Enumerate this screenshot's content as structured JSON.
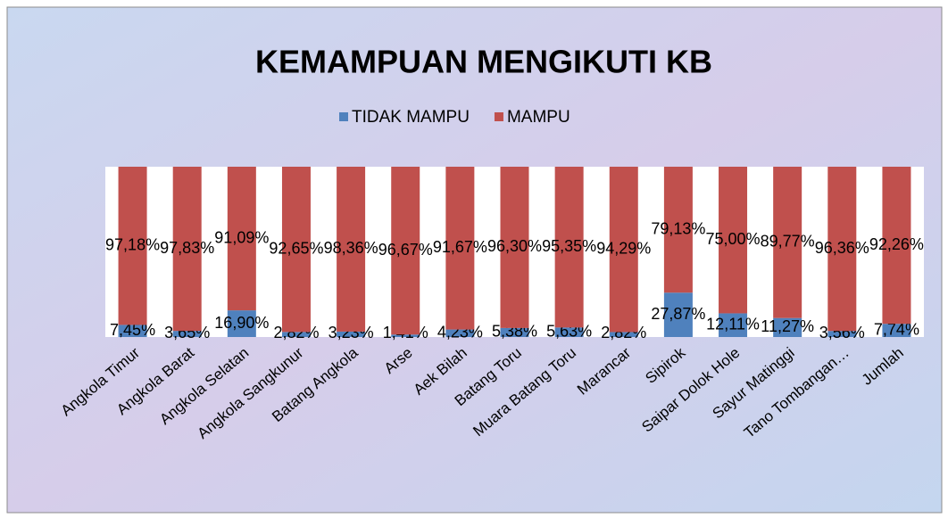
{
  "chart_data": {
    "type": "bar",
    "stacked": "percent",
    "title": "KEMAMPUAN MENGIKUTI KB",
    "categories": [
      "Angkola Timur",
      "Angkola Barat",
      "Angkola Selatan",
      "Angkola Sangkunur",
      "Batang Angkola",
      "Arse",
      "Aek Bilah",
      "Batang Toru",
      "Muara Batang Toru",
      "Marancar",
      "Sipirok",
      "Saipar Dolok Hole",
      "Sayur Matinggi",
      "Tano Tombangan…",
      "Jumlah"
    ],
    "series": [
      {
        "name": "TIDAK MAMPU",
        "color": "#4f81bd",
        "values": [
          7.45,
          3.65,
          16.9,
          2.82,
          3.23,
          1.41,
          4.23,
          5.38,
          5.63,
          2.82,
          27.87,
          12.11,
          11.27,
          3.56,
          7.74
        ],
        "value_labels": [
          "7,45%",
          "3,65%",
          "16,90%",
          "2,82%",
          "3,23%",
          "1,41%",
          "4,23%",
          "5,38%",
          "5,63%",
          "2,82%",
          "27,87%",
          "12,11%",
          "11,27%",
          "3,56%",
          "7,74%"
        ]
      },
      {
        "name": "MAMPU",
        "color": "#c0504d",
        "values": [
          97.18,
          97.83,
          91.09,
          92.65,
          98.36,
          96.67,
          91.67,
          96.3,
          95.35,
          94.29,
          79.13,
          75.0,
          89.77,
          96.36,
          92.26
        ],
        "value_labels": [
          "97,18%",
          "97,83%",
          "91,09%",
          "92,65%",
          "98,36%",
          "96,67%",
          "91,67%",
          "96,30%",
          "95,35%",
          "94,29%",
          "79,13%",
          "75,00%",
          "89,77%",
          "96,36%",
          "92,26%"
        ]
      }
    ],
    "legend": "top"
  }
}
